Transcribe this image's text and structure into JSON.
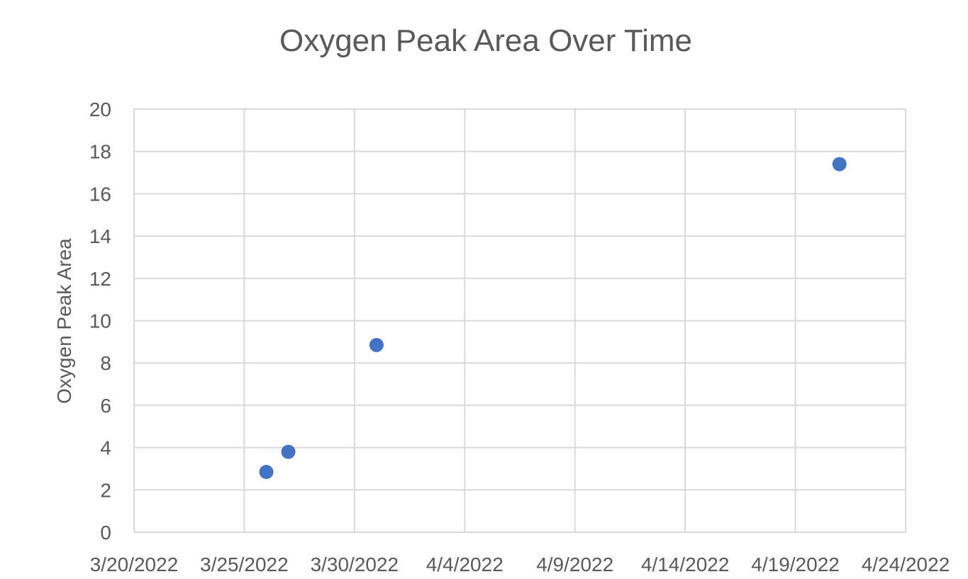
{
  "chart_data": {
    "type": "scatter",
    "title": "Oxygen Peak Area Over Time",
    "xlabel": "",
    "ylabel": "Oxygen Peak Area",
    "x_axis_type": "date",
    "xlim": [
      "2022-03-20",
      "2022-04-24"
    ],
    "ylim": [
      0,
      20
    ],
    "x_ticks": [
      "3/20/2022",
      "3/25/2022",
      "3/30/2022",
      "4/4/2022",
      "4/9/2022",
      "4/14/2022",
      "4/19/2022",
      "4/24/2022"
    ],
    "y_ticks": [
      "0",
      "2",
      "4",
      "6",
      "8",
      "10",
      "12",
      "14",
      "16",
      "18",
      "20"
    ],
    "grid": true,
    "legend": "none",
    "series": [
      {
        "color": "#4472c4",
        "points": [
          {
            "x": "2022-03-26",
            "y": 2.85
          },
          {
            "x": "2022-03-27",
            "y": 3.8
          },
          {
            "x": "2022-03-31",
            "y": 8.85
          },
          {
            "x": "2022-04-21",
            "y": 17.4
          }
        ]
      }
    ],
    "colors": {
      "grid": "#d9d9d9",
      "text": "#595959",
      "marker": "#4472c4"
    }
  }
}
